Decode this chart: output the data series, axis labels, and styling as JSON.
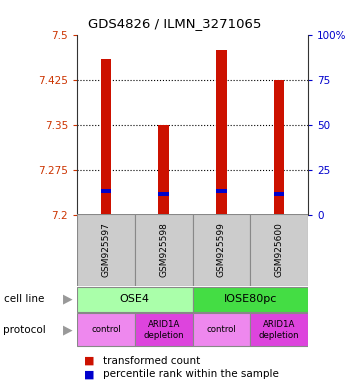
{
  "title": "GDS4826 / ILMN_3271065",
  "samples": [
    "GSM925597",
    "GSM925598",
    "GSM925599",
    "GSM925600"
  ],
  "red_values": [
    7.46,
    7.35,
    7.475,
    7.425
  ],
  "blue_values": [
    7.237,
    7.232,
    7.237,
    7.232
  ],
  "ylim": [
    7.2,
    7.5
  ],
  "yticks_left": [
    7.2,
    7.275,
    7.35,
    7.425,
    7.5
  ],
  "yticks_right": [
    0,
    25,
    50,
    75,
    100
  ],
  "ytick_right_labels": [
    "0",
    "25",
    "50",
    "75",
    "100%"
  ],
  "cell_line_colors": [
    "#aaffaa",
    "#44dd44"
  ],
  "protocol_colors_light": "#ee88ee",
  "protocol_colors_dark": "#dd44dd",
  "bar_color_red": "#cc1100",
  "bar_color_blue": "#0000cc",
  "bar_width": 0.18,
  "grid_color": "#555555",
  "label_color_left": "#cc3300",
  "label_color_right": "#0000cc",
  "legend_red": "transformed count",
  "legend_blue": "percentile rank within the sample"
}
